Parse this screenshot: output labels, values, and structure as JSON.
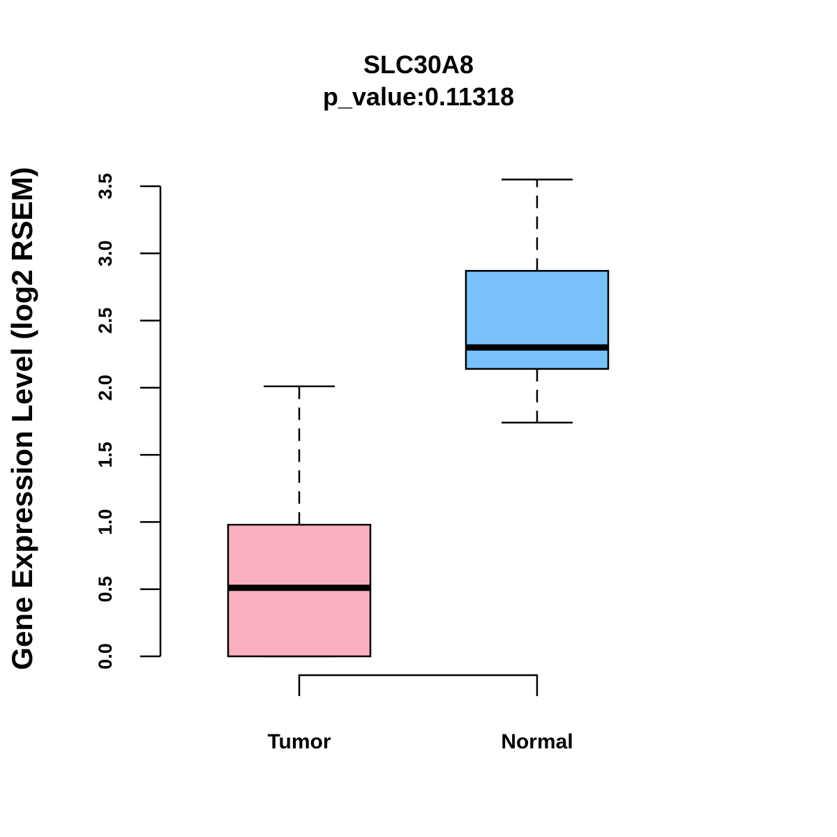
{
  "chart_data": {
    "type": "boxplot",
    "title": "SLC30A8",
    "subtitle": "p_value:0.11318",
    "xlabel": "",
    "ylabel": "Gene Expression Level (log2 RSEM)",
    "ylim": [
      0,
      3.5
    ],
    "yticks": [
      "0.0",
      "0.5",
      "1.0",
      "1.5",
      "2.0",
      "2.5",
      "3.0",
      "3.5"
    ],
    "grid": false,
    "categories": [
      "Tumor",
      "Normal"
    ],
    "series": [
      {
        "name": "Tumor",
        "min": 0.0,
        "q1": 0.0,
        "median": 0.51,
        "q3": 0.98,
        "max": 2.01,
        "color": "#FBB0C2"
      },
      {
        "name": "Normal",
        "min": 1.74,
        "q1": 2.14,
        "median": 2.3,
        "q3": 2.87,
        "max": 3.55,
        "color": "#79C1F9"
      }
    ],
    "significance_bracket": {
      "from": "Tumor",
      "to": "Normal"
    }
  }
}
